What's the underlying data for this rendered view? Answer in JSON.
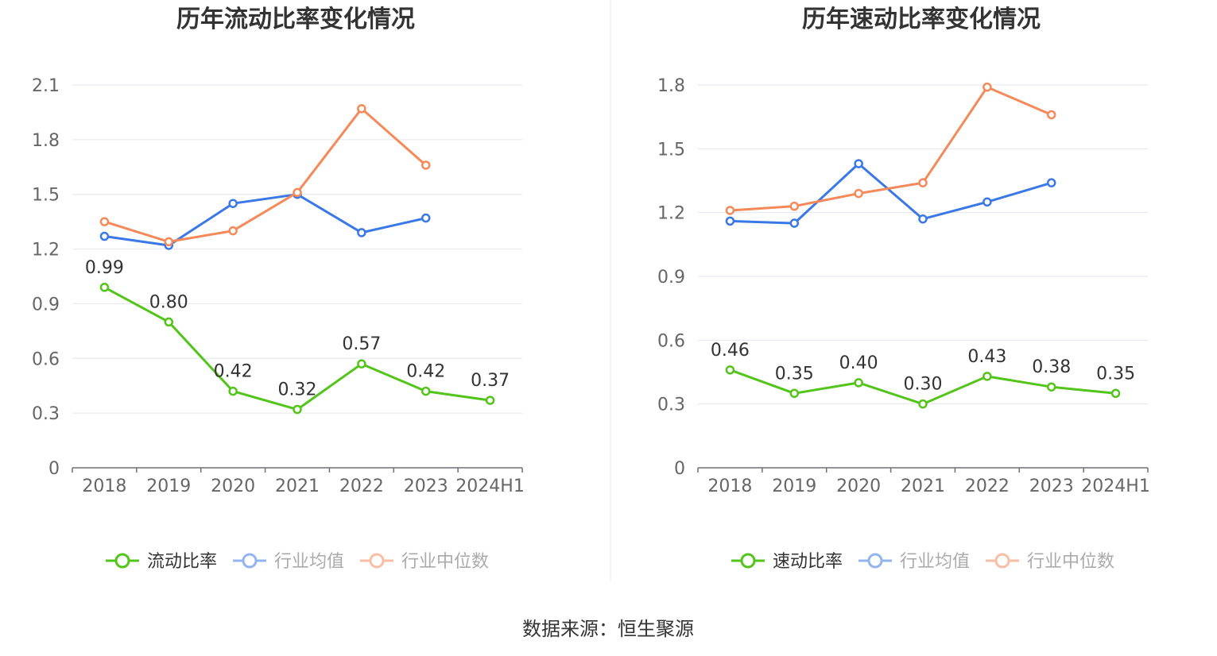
{
  "source_text": "数据来源：恒生聚源",
  "chart_data": [
    {
      "type": "line",
      "title": "历年流动比率变化情况",
      "categories": [
        "2018",
        "2019",
        "2020",
        "2021",
        "2022",
        "2023",
        "2024H1"
      ],
      "ylim": [
        0,
        2.1
      ],
      "yticks": [
        "0",
        "0.3",
        "0.6",
        "0.9",
        "1.2",
        "1.5",
        "1.8",
        "2.1"
      ],
      "grid": true,
      "legend_position": "bottom",
      "series": [
        {
          "name": "流动比率",
          "color": "#52c41a",
          "values": [
            0.99,
            0.8,
            0.42,
            0.32,
            0.57,
            0.42,
            0.37
          ],
          "show_labels": true,
          "labels": [
            "0.99",
            "0.80",
            "0.42",
            "0.32",
            "0.57",
            "0.42",
            "0.37"
          ]
        },
        {
          "name": "行业均值",
          "color": "#3a78e7",
          "values": [
            1.27,
            1.22,
            1.45,
            1.5,
            1.29,
            1.37,
            null
          ],
          "show_labels": false
        },
        {
          "name": "行业中位数",
          "color": "#f5895a",
          "values": [
            1.35,
            1.24,
            1.3,
            1.51,
            1.97,
            1.66,
            null
          ],
          "show_labels": false
        }
      ]
    },
    {
      "type": "line",
      "title": "历年速动比率变化情况",
      "categories": [
        "2018",
        "2019",
        "2020",
        "2021",
        "2022",
        "2023",
        "2024H1"
      ],
      "ylim": [
        0,
        1.8
      ],
      "yticks": [
        "0",
        "0.3",
        "0.6",
        "0.9",
        "1.2",
        "1.5",
        "1.8"
      ],
      "grid": true,
      "legend_position": "bottom",
      "series": [
        {
          "name": "速动比率",
          "color": "#52c41a",
          "values": [
            0.46,
            0.35,
            0.4,
            0.3,
            0.43,
            0.38,
            0.35
          ],
          "show_labels": true,
          "labels": [
            "0.46",
            "0.35",
            "0.40",
            "0.30",
            "0.43",
            "0.38",
            "0.35"
          ]
        },
        {
          "name": "行业均值",
          "color": "#3a78e7",
          "values": [
            1.16,
            1.15,
            1.43,
            1.17,
            1.25,
            1.34,
            null
          ],
          "show_labels": false
        },
        {
          "name": "行业中位数",
          "color": "#f5895a",
          "values": [
            1.21,
            1.23,
            1.29,
            1.34,
            1.79,
            1.66,
            null
          ],
          "show_labels": false
        }
      ]
    }
  ]
}
